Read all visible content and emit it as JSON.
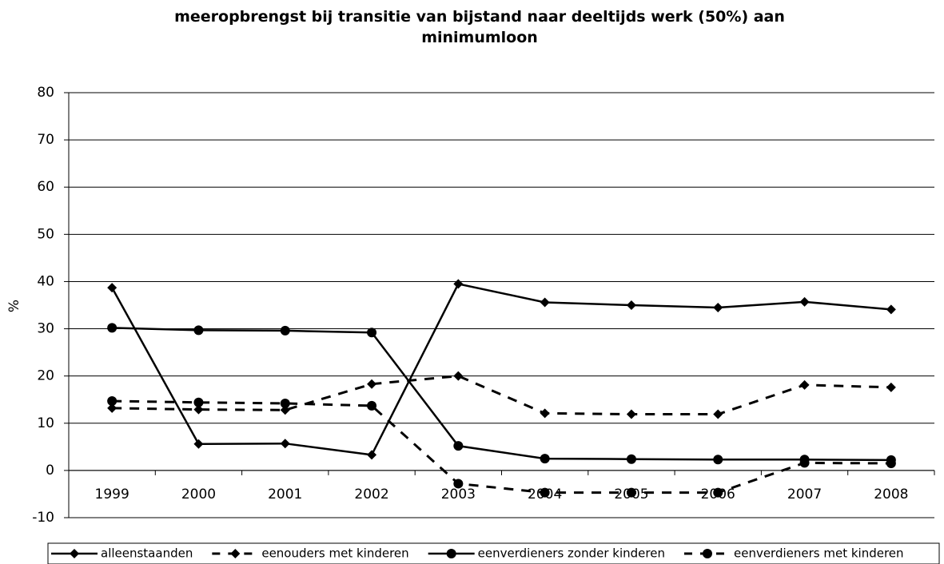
{
  "chart_data": {
    "type": "line",
    "title": "meeropbrengst bij transitie van bijstand naar deeltijds werk (50%) aan minimumloon",
    "ylabel": "%",
    "categories": [
      "1999",
      "2000",
      "2001",
      "2002",
      "2003",
      "2004",
      "2005",
      "2006",
      "2007",
      "2008"
    ],
    "series": [
      {
        "name": "alleenstaanden",
        "color": "#000000",
        "dash": "solid",
        "marker": "diamond",
        "values": [
          38.7,
          5.6,
          5.7,
          3.3,
          39.5,
          35.6,
          35.0,
          34.5,
          35.7,
          34.1
        ]
      },
      {
        "name": "eenouders met kinderen",
        "color": "#000000",
        "dash": "dashed",
        "marker": "diamond",
        "values": [
          13.2,
          12.9,
          12.8,
          18.3,
          20.0,
          12.1,
          11.9,
          11.9,
          18.1,
          17.6
        ]
      },
      {
        "name": "eenverdieners zonder kinderen",
        "color": "#000000",
        "dash": "solid",
        "marker": "circle",
        "values": [
          30.2,
          29.7,
          29.6,
          29.2,
          5.2,
          2.5,
          2.4,
          2.3,
          2.3,
          2.2
        ]
      },
      {
        "name": "eenverdieners met kinderen",
        "color": "#000000",
        "dash": "dashed",
        "marker": "circle",
        "values": [
          14.7,
          14.4,
          14.2,
          13.7,
          -2.8,
          -4.7,
          -4.7,
          -4.7,
          1.6,
          1.5
        ]
      }
    ],
    "ylim": [
      -10,
      80
    ],
    "yticks": [
      -10,
      0,
      10,
      20,
      30,
      40,
      50,
      60,
      70,
      80
    ],
    "grid": true,
    "legend": "bottom"
  }
}
